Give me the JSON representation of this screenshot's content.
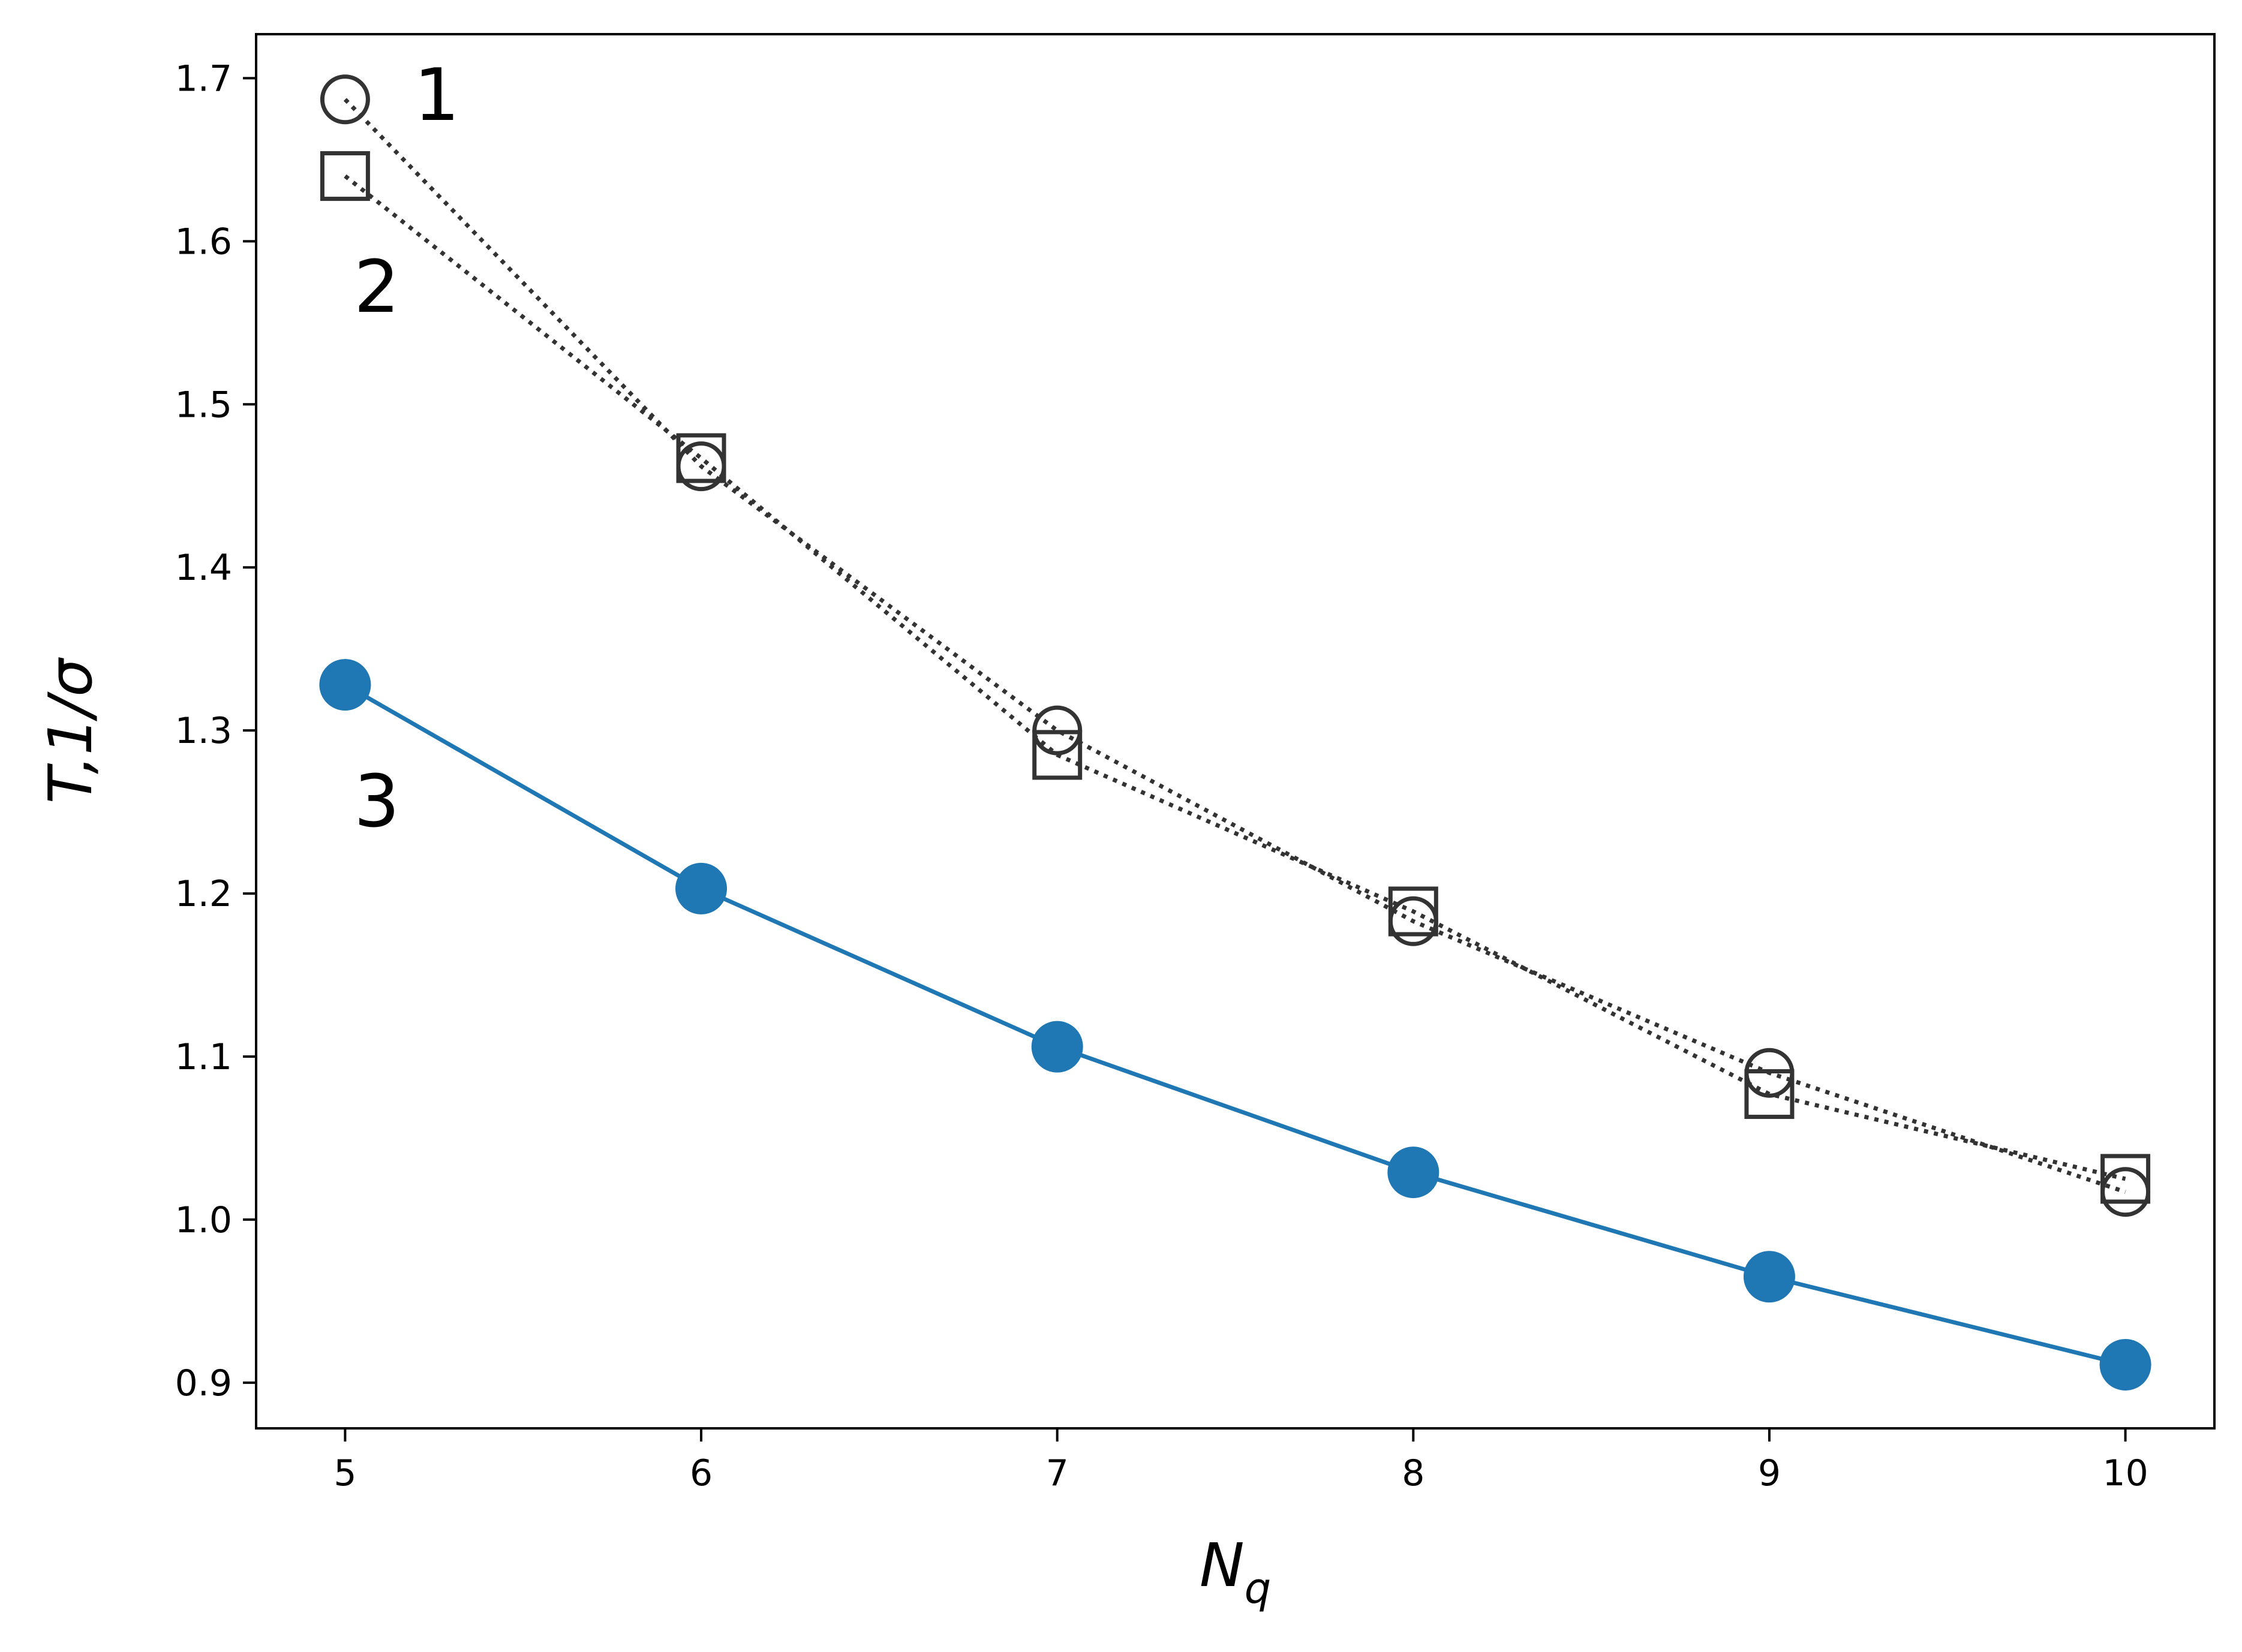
{
  "chart_data": {
    "type": "line",
    "x": [
      5,
      6,
      7,
      8,
      9,
      10
    ],
    "xticks": [
      "5",
      "6",
      "7",
      "8",
      "9",
      "10"
    ],
    "yticks": [
      "0.9",
      "1.0",
      "1.1",
      "1.2",
      "1.3",
      "1.4",
      "1.5",
      "1.6",
      "1.7"
    ],
    "xlim": [
      4.75,
      10.25
    ],
    "ylim": [
      0.872,
      1.727
    ],
    "grid": false,
    "xlabel_base": "N",
    "xlabel_sub": "q",
    "ylabel": "T,1/σ",
    "series": [
      {
        "label": "1",
        "marker": "circle-open",
        "line": "dotted",
        "color": "#333333",
        "values": [
          1.687,
          1.462,
          1.3,
          1.183,
          1.09,
          1.017
        ]
      },
      {
        "label": "2",
        "marker": "square-open",
        "line": "dotted",
        "color": "#333333",
        "values": [
          1.64,
          1.467,
          1.285,
          1.189,
          1.077,
          1.025
        ]
      },
      {
        "label": "3",
        "marker": "circle-filled",
        "line": "solid",
        "color": "#1f77b4",
        "values": [
          1.328,
          1.203,
          1.106,
          1.029,
          0.965,
          0.911
        ]
      }
    ]
  }
}
